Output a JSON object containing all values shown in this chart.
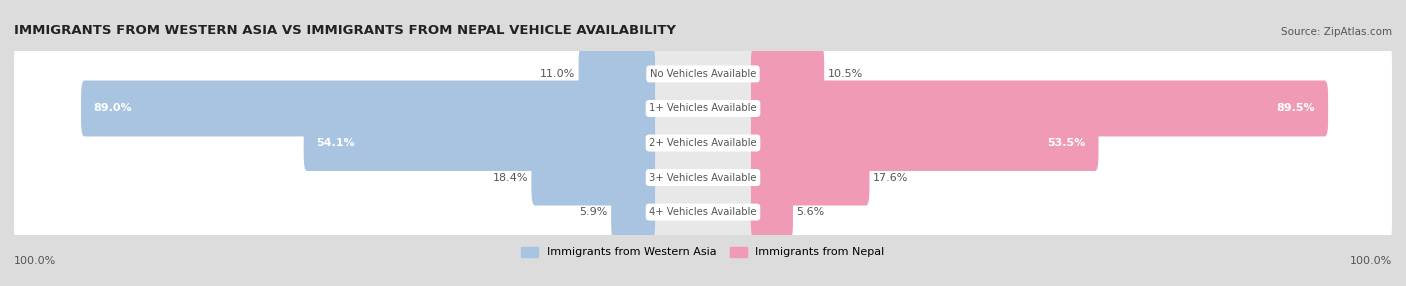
{
  "title": "IMMIGRANTS FROM WESTERN ASIA VS IMMIGRANTS FROM NEPAL VEHICLE AVAILABILITY",
  "source": "Source: ZipAtlas.com",
  "categories": [
    "No Vehicles Available",
    "1+ Vehicles Available",
    "2+ Vehicles Available",
    "3+ Vehicles Available",
    "4+ Vehicles Available"
  ],
  "western_asia_values": [
    11.0,
    89.0,
    54.1,
    18.4,
    5.9
  ],
  "nepal_values": [
    10.5,
    89.5,
    53.5,
    17.6,
    5.6
  ],
  "western_asia_color": "#a8c4e0",
  "nepal_color": "#f09ab5",
  "background_color": "#dcdcdc",
  "row_color": "#f0f0f0",
  "bar_bg_color": "#f0f0f0",
  "label_color": "#555555",
  "title_color": "#222222",
  "figsize": [
    14.06,
    2.86
  ],
  "dpi": 100,
  "western_asia_label": "Immigrants from Western Asia",
  "nepal_label": "Immigrants from Nepal"
}
